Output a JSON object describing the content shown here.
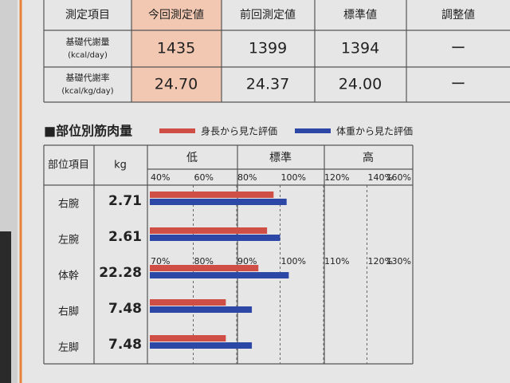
{
  "basal_table": {
    "headers": [
      "測定項目",
      "今回測定値",
      "前回測定値",
      "標準値",
      "調整値"
    ],
    "rows": [
      [
        "基礎代謝量",
        "(kcal/day)",
        "1435",
        "1399",
        "1394",
        "ー"
      ],
      [
        "基礎代謝率",
        "(kcal/kg/day)",
        "24.70",
        "24.37",
        "24.00",
        "ー"
      ]
    ]
  },
  "muscle": {
    "title": "■部位別筋肉量",
    "legend": [
      {
        "name": "身長から見た評価",
        "color": "#cf4f47"
      },
      {
        "name": "体重から見た評価",
        "color": "#2d47a6"
      }
    ],
    "headers": [
      "部位項目",
      "kg"
    ],
    "zones": [
      "低",
      "標準",
      "高"
    ],
    "limb_scale": [
      {
        "value": 40,
        "label": "40%"
      },
      {
        "value": 60,
        "label": "60%"
      },
      {
        "value": 80,
        "label": "80%"
      },
      {
        "value": 100,
        "label": "100%"
      },
      {
        "value": 120,
        "label": "120%"
      },
      {
        "value": 140,
        "label": "140%"
      },
      {
        "value": 160,
        "label": "160%"
      }
    ],
    "trunk_scale": [
      {
        "value": 70,
        "label": "70%"
      },
      {
        "value": 80,
        "label": "80%"
      },
      {
        "value": 90,
        "label": "90%"
      },
      {
        "value": 100,
        "label": "100%"
      },
      {
        "value": 110,
        "label": "110%"
      },
      {
        "value": 120,
        "label": "120%"
      },
      {
        "value": 130,
        "label": "130%"
      }
    ],
    "rows": [
      {
        "part": "右腕",
        "kg": "2.71",
        "values": [
          97,
          103
        ]
      },
      {
        "part": "左腕",
        "kg": "2.61",
        "values": [
          94,
          100
        ]
      },
      {
        "part": "体幹",
        "kg": "22.28",
        "values": [
          95,
          102
        ]
      },
      {
        "part": "右脚",
        "kg": "7.48",
        "values": [
          75,
          87
        ]
      },
      {
        "part": "左脚",
        "kg": "7.48",
        "values": [
          75,
          87
        ]
      }
    ]
  }
}
